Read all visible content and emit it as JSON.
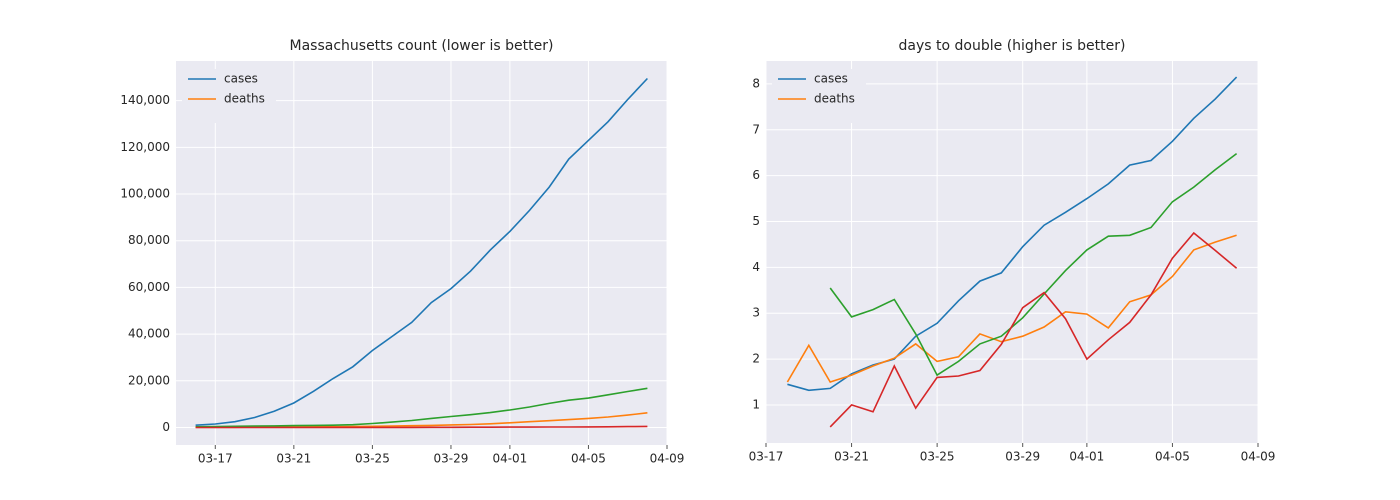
{
  "chart_data": [
    {
      "type": "line",
      "title": "Massachusetts count (lower is better)",
      "x": [
        "03-16",
        "03-17",
        "03-18",
        "03-19",
        "03-20",
        "03-21",
        "03-22",
        "03-23",
        "03-24",
        "03-25",
        "03-26",
        "03-27",
        "03-28",
        "03-29",
        "03-30",
        "03-31",
        "04-01",
        "04-02",
        "04-03",
        "04-04",
        "04-05",
        "04-06",
        "04-07",
        "04-08"
      ],
      "series": [
        {
          "name": "cases",
          "color": "#1f77b4",
          "values": [
            1000,
            1500,
            2500,
            4300,
            7000,
            10500,
            15500,
            21000,
            26000,
            33000,
            39000,
            45000,
            53500,
            59500,
            67000,
            76000,
            84000,
            93000,
            103000,
            115000,
            123000,
            131000,
            140500,
            149500
          ]
        },
        {
          "name": "deaths",
          "color": "#ff7f0e",
          "values": [
            100,
            100,
            100,
            150,
            200,
            250,
            300,
            350,
            400,
            500,
            600,
            750,
            900,
            1100,
            1300,
            1600,
            2000,
            2500,
            2900,
            3400,
            3900,
            4500,
            5300,
            6300
          ]
        },
        {
          "color": "#2ca02c",
          "values": [
            300,
            400,
            500,
            600,
            700,
            800,
            900,
            1000,
            1200,
            1700,
            2300,
            3000,
            3900,
            4700,
            5500,
            6400,
            7500,
            8800,
            10300,
            11700,
            12600,
            14000,
            15400,
            16800
          ]
        },
        {
          "color": "#d62728",
          "values": [
            0,
            0,
            0,
            0,
            0,
            10,
            15,
            20,
            30,
            40,
            50,
            60,
            80,
            100,
            120,
            140,
            160,
            180,
            200,
            230,
            260,
            300,
            380,
            480
          ]
        }
      ],
      "xlim": [
        "03-15",
        "04-09"
      ],
      "xticks": [
        "03-17",
        "03-21",
        "03-25",
        "03-29",
        "04-01",
        "04-05",
        "04-09"
      ],
      "ylim": [
        -7500,
        157000
      ],
      "yticks": [
        0,
        {
          "value": 20000,
          "label": "20,000"
        },
        {
          "value": 40000,
          "label": "40,000"
        },
        {
          "value": 60000,
          "label": "60,000"
        },
        {
          "value": 80000,
          "label": "80,000"
        },
        {
          "value": 100000,
          "label": "100,000"
        },
        {
          "value": 120000,
          "label": "120,000"
        },
        {
          "value": 140000,
          "label": "140,000"
        }
      ],
      "grid": true,
      "legend": "upper-left"
    },
    {
      "type": "line",
      "title": "days to double (higher is better)",
      "x": [
        "03-18",
        "03-19",
        "03-20",
        "03-21",
        "03-22",
        "03-23",
        "03-24",
        "03-25",
        "03-26",
        "03-27",
        "03-28",
        "03-29",
        "03-30",
        "03-31",
        "04-01",
        "04-02",
        "04-03",
        "04-04",
        "04-05",
        "04-06",
        "04-07",
        "04-08"
      ],
      "series": [
        {
          "name": "cases",
          "color": "#1f77b4",
          "values": [
            1.45,
            1.32,
            1.36,
            1.68,
            1.87,
            2.0,
            2.5,
            2.78,
            3.27,
            3.7,
            3.88,
            4.45,
            4.92,
            5.2,
            5.5,
            5.82,
            6.23,
            6.33,
            6.75,
            7.25,
            7.67,
            8.15
          ]
        },
        {
          "name": "deaths",
          "color": "#ff7f0e",
          "values": [
            1.5,
            2.3,
            1.5,
            1.65,
            1.85,
            2.02,
            2.33,
            1.95,
            2.05,
            2.55,
            2.38,
            2.5,
            2.7,
            3.03,
            2.98,
            2.68,
            3.25,
            3.4,
            3.8,
            4.38,
            4.55,
            4.7
          ]
        },
        {
          "color": "#2ca02c",
          "values": [
            null,
            null,
            3.55,
            2.92,
            3.08,
            3.3,
            2.55,
            1.65,
            1.95,
            2.33,
            2.5,
            2.9,
            3.42,
            3.93,
            4.38,
            4.68,
            4.7,
            4.87,
            5.43,
            5.75,
            6.13,
            6.48
          ]
        },
        {
          "color": "#d62728",
          "values": [
            null,
            null,
            0.52,
            1.0,
            0.85,
            1.85,
            0.93,
            1.6,
            1.63,
            1.75,
            2.32,
            3.12,
            3.45,
            2.88,
            2.0,
            2.42,
            2.8,
            3.4,
            4.2,
            4.75,
            4.37,
            3.98
          ]
        }
      ],
      "xlim": [
        "03-17",
        "04-09"
      ],
      "xticks": [
        "03-17",
        "03-21",
        "03-25",
        "03-29",
        "04-01",
        "04-05",
        "04-09"
      ],
      "ylim": [
        0.17,
        8.5
      ],
      "yticks": [
        1,
        2,
        3,
        4,
        5,
        6,
        7,
        8
      ],
      "grid": true,
      "legend": "upper-left"
    }
  ]
}
